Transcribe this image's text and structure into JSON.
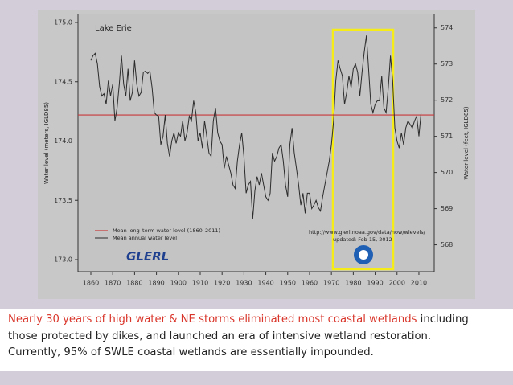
{
  "chart_data": {
    "type": "line",
    "title": "Lake Erie",
    "y_label": "Water level (meters, IGLD85)",
    "y2_label": "Water level (feet, IGLD85)",
    "x": [
      1860,
      1861,
      1862,
      1863,
      1864,
      1865,
      1866,
      1867,
      1868,
      1869,
      1870,
      1871,
      1872,
      1873,
      1874,
      1875,
      1876,
      1877,
      1878,
      1879,
      1880,
      1881,
      1882,
      1883,
      1884,
      1885,
      1886,
      1887,
      1888,
      1889,
      1890,
      1891,
      1892,
      1893,
      1894,
      1895,
      1896,
      1897,
      1898,
      1899,
      1900,
      1901,
      1902,
      1903,
      1904,
      1905,
      1906,
      1907,
      1908,
      1909,
      1910,
      1911,
      1912,
      1913,
      1914,
      1915,
      1916,
      1917,
      1918,
      1919,
      1920,
      1921,
      1922,
      1923,
      1924,
      1925,
      1926,
      1927,
      1928,
      1929,
      1930,
      1931,
      1932,
      1933,
      1934,
      1935,
      1936,
      1937,
      1938,
      1939,
      1940,
      1941,
      1942,
      1943,
      1944,
      1945,
      1946,
      1947,
      1948,
      1949,
      1950,
      1951,
      1952,
      1953,
      1954,
      1955,
      1956,
      1957,
      1958,
      1959,
      1960,
      1961,
      1962,
      1963,
      1964,
      1965,
      1966,
      1967,
      1968,
      1969,
      1970,
      1971,
      1972,
      1973,
      1974,
      1975,
      1976,
      1977,
      1978,
      1979,
      1980,
      1981,
      1982,
      1983,
      1984,
      1985,
      1986,
      1987,
      1988,
      1989,
      1990,
      1991,
      1992,
      1993,
      1994,
      1995,
      1996,
      1997,
      1998,
      1999,
      2000,
      2001,
      2002,
      2003,
      2004,
      2005,
      2006,
      2007,
      2008,
      2009,
      2010,
      2011
    ],
    "series": [
      {
        "name": "Mean annual water level",
        "color": "#2b2b2b",
        "values": [
          174.68,
          174.72,
          174.74,
          174.65,
          174.46,
          174.38,
          174.4,
          174.31,
          174.51,
          174.38,
          174.48,
          174.17,
          174.28,
          174.48,
          174.72,
          174.48,
          174.38,
          174.61,
          174.34,
          174.41,
          174.68,
          174.48,
          174.38,
          174.41,
          174.58,
          174.59,
          174.57,
          174.59,
          174.45,
          174.24,
          174.22,
          174.21,
          173.97,
          174.04,
          174.22,
          173.98,
          173.87,
          174.0,
          174.07,
          173.98,
          174.07,
          174.04,
          174.17,
          174.0,
          174.07,
          174.21,
          174.17,
          174.34,
          174.24,
          174.0,
          174.07,
          173.94,
          174.17,
          174.04,
          173.9,
          173.87,
          174.17,
          174.28,
          174.07,
          174.0,
          173.97,
          173.77,
          173.87,
          173.8,
          173.73,
          173.63,
          173.6,
          173.83,
          173.97,
          174.07,
          173.87,
          173.56,
          173.63,
          173.66,
          173.34,
          173.58,
          173.7,
          173.63,
          173.73,
          173.63,
          173.53,
          173.5,
          173.56,
          173.9,
          173.83,
          173.87,
          173.94,
          173.97,
          173.83,
          173.63,
          173.53,
          173.97,
          174.11,
          173.9,
          173.77,
          173.63,
          173.46,
          173.56,
          173.39,
          173.56,
          173.56,
          173.43,
          173.46,
          173.5,
          173.44,
          173.41,
          173.53,
          173.63,
          173.73,
          173.83,
          173.97,
          174.17,
          174.51,
          174.68,
          174.61,
          174.55,
          174.31,
          174.41,
          174.55,
          174.45,
          174.61,
          174.65,
          174.58,
          174.38,
          174.58,
          174.75,
          174.89,
          174.61,
          174.31,
          174.24,
          174.31,
          174.34,
          174.34,
          174.55,
          174.28,
          174.24,
          174.45,
          174.72,
          174.51,
          174.11,
          174.0,
          173.94,
          174.07,
          173.97,
          174.11,
          174.17,
          174.14,
          174.11,
          174.17,
          174.21,
          174.04,
          174.24
        ]
      }
    ],
    "reference_line": {
      "name": "Mean long–term water level (1860–2011)",
      "value": 174.22,
      "color": "#c8383a"
    },
    "xlim": [
      1855,
      2017
    ],
    "xticks": [
      1860,
      1870,
      1880,
      1890,
      1900,
      1910,
      1920,
      1930,
      1940,
      1950,
      1960,
      1970,
      1980,
      1990,
      2000,
      2010
    ],
    "ylim": [
      173,
      175
    ],
    "yticks": [
      {
        "value": 173,
        "label": "173.0"
      },
      173.5,
      {
        "value": 174,
        "label": "174.0"
      },
      174.5,
      {
        "value": 175,
        "label": "175.0"
      }
    ],
    "y2lim": [
      567.59,
      574.15
    ],
    "y2ticks": [
      568,
      569,
      570,
      571,
      572,
      573,
      574
    ],
    "url": "http://www.glerl.noaa.gov/data/now/wlevels/",
    "updated": "updated: Feb 15, 2012",
    "logo": "GLERL"
  },
  "caption": {
    "highlight": "Nearly 30 years of high water & NE storms  eliminated most coastal wetlands",
    "rest": "including",
    "line2": "those protected by dikes, and launched an era of intensive wetland restoration.",
    "line3": "Currently, 95% of SWLE coastal wetlands are essentially impounded."
  }
}
